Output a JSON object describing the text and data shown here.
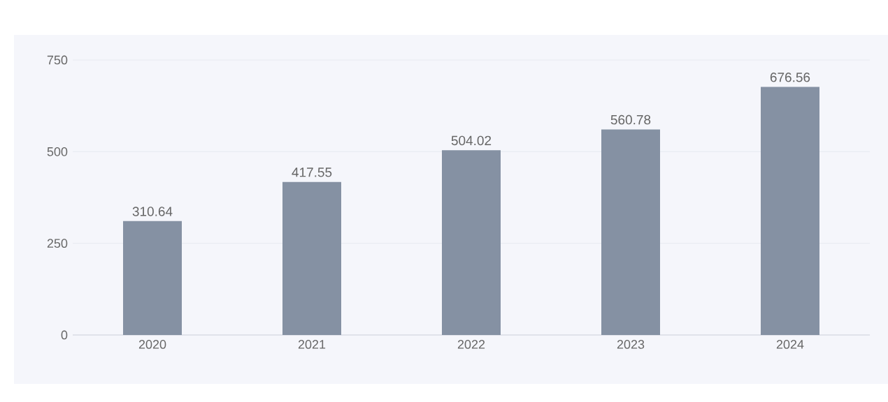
{
  "chart_data": {
    "type": "bar",
    "categories": [
      "2020",
      "2021",
      "2022",
      "2023",
      "2024"
    ],
    "values": [
      310.64,
      417.55,
      504.02,
      560.78,
      676.56
    ],
    "color": "#8591a3",
    "ylim": [
      0,
      750
    ],
    "yticks": [
      0,
      250,
      500,
      750
    ],
    "grid": "y",
    "data_labels": true
  }
}
